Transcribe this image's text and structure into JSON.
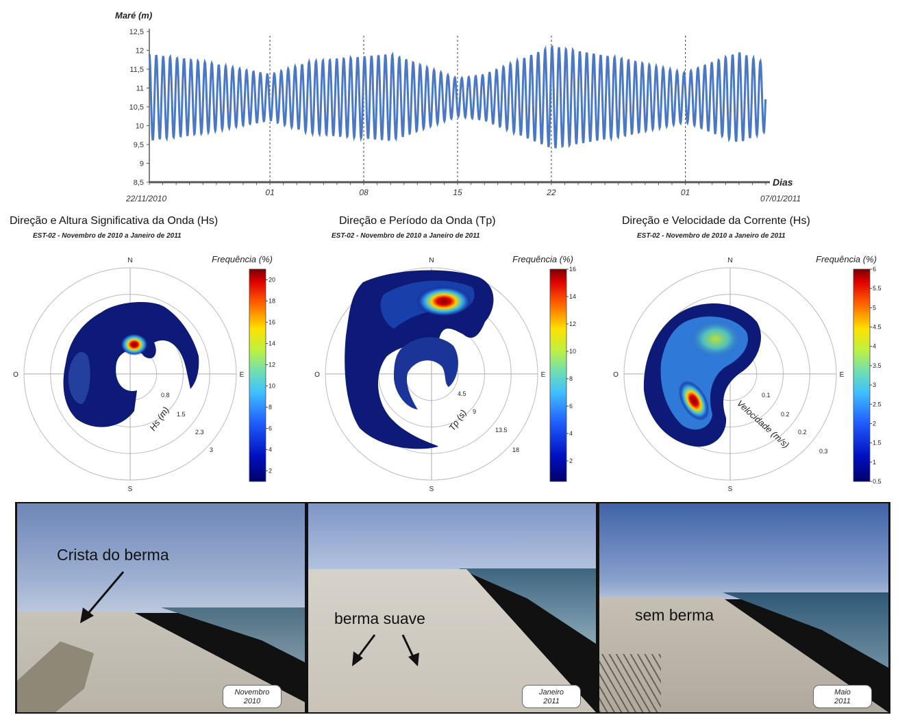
{
  "chart_data": [
    {
      "type": "line",
      "ylabel": "Maré (m)",
      "xlabel": "Dias",
      "yticks": [
        "12,5",
        "12",
        "11,5",
        "11",
        "10,5",
        "10",
        "9,5",
        "9",
        "8,5"
      ],
      "ylim": [
        8.5,
        12.5
      ],
      "x_start_label": "22/11/2010",
      "x_end_label": "07/01/2011",
      "x_day_labels": [
        "01",
        "08",
        "15",
        "22",
        "01"
      ],
      "x_day_offsets": [
        9,
        16,
        23,
        30,
        40
      ],
      "x_range_days": [
        0,
        46
      ],
      "cycles_per_day": 1.93,
      "mean_level": 10.75,
      "amplitude_days": [
        0,
        4,
        9,
        12,
        18,
        23,
        25,
        30,
        35,
        40,
        44,
        46
      ],
      "amplitude_values": [
        1.15,
        0.95,
        0.6,
        0.95,
        1.15,
        0.5,
        0.6,
        1.35,
        1.05,
        0.65,
        1.2,
        0.9
      ],
      "color": "#4a78c4",
      "vertical_gridlines": "dashed at day labels"
    },
    {
      "type": "heatmap",
      "title": "Direção e Altura Significativa da Onda (Hs)",
      "subtitle": "EST-02 - Novembro de 2010 a Janeiro de 2011",
      "radial_label": "Hs (m)",
      "radial_ticks": [
        "0.8",
        "1.5",
        "2.3",
        "3"
      ],
      "colorbar_label": "Frequência (%)",
      "colorbar_ticks": [
        "20",
        "18",
        "16",
        "14",
        "12",
        "10",
        "8",
        "6",
        "4",
        "2"
      ],
      "colorbar_range": [
        1,
        21
      ],
      "directions": [
        "N",
        "E",
        "S",
        "O"
      ],
      "peak": {
        "direction_deg": 10,
        "radius": 0.38,
        "value": 20
      }
    },
    {
      "type": "heatmap",
      "title": "Direção e Período da Onda (Tp)",
      "subtitle": "EST-02 - Novembro de 2010 a Janeiro de 2011",
      "radial_label": "Tp (s)",
      "radial_ticks": [
        "4.5",
        "9",
        "13.5",
        "18"
      ],
      "colorbar_label": "Frequência (%)",
      "colorbar_ticks": [
        "16",
        "14",
        "12",
        "10",
        "8",
        "6",
        "4",
        "2"
      ],
      "colorbar_range": [
        0.5,
        16
      ],
      "directions": [
        "N",
        "E",
        "S",
        "O"
      ],
      "peak": {
        "direction_deg": 15,
        "radius": 0.72,
        "value": 16
      }
    },
    {
      "type": "heatmap",
      "title": "Direção e Velocidade da Corrente (Hs)",
      "subtitle": "EST-02 - Novembro de 2010 a Janeiro de 2011",
      "radial_label": "Velocidade (m/s)",
      "radial_ticks": [
        "0.1",
        "0.2",
        "0.2",
        "0.3"
      ],
      "colorbar_label": "Frequência (%)",
      "colorbar_ticks": [
        "6",
        "5.5",
        "5",
        "4.5",
        "4",
        "3.5",
        "3",
        "2.5",
        "2",
        "1.5",
        "1",
        "0.5"
      ],
      "colorbar_range": [
        0.5,
        6
      ],
      "directions": [
        "N",
        "E",
        "S",
        "O"
      ],
      "peak": {
        "direction_deg": 215,
        "radius": 0.45,
        "value": 6
      }
    }
  ],
  "photos": [
    {
      "annotation": "Crista do berma",
      "date_line1": "Novembro",
      "date_line2": "2010"
    },
    {
      "annotation": "berma suave",
      "date_line1": "Janeiro",
      "date_line2": "2011"
    },
    {
      "annotation": "sem berma",
      "date_line1": "Maio",
      "date_line2": "2011"
    }
  ]
}
